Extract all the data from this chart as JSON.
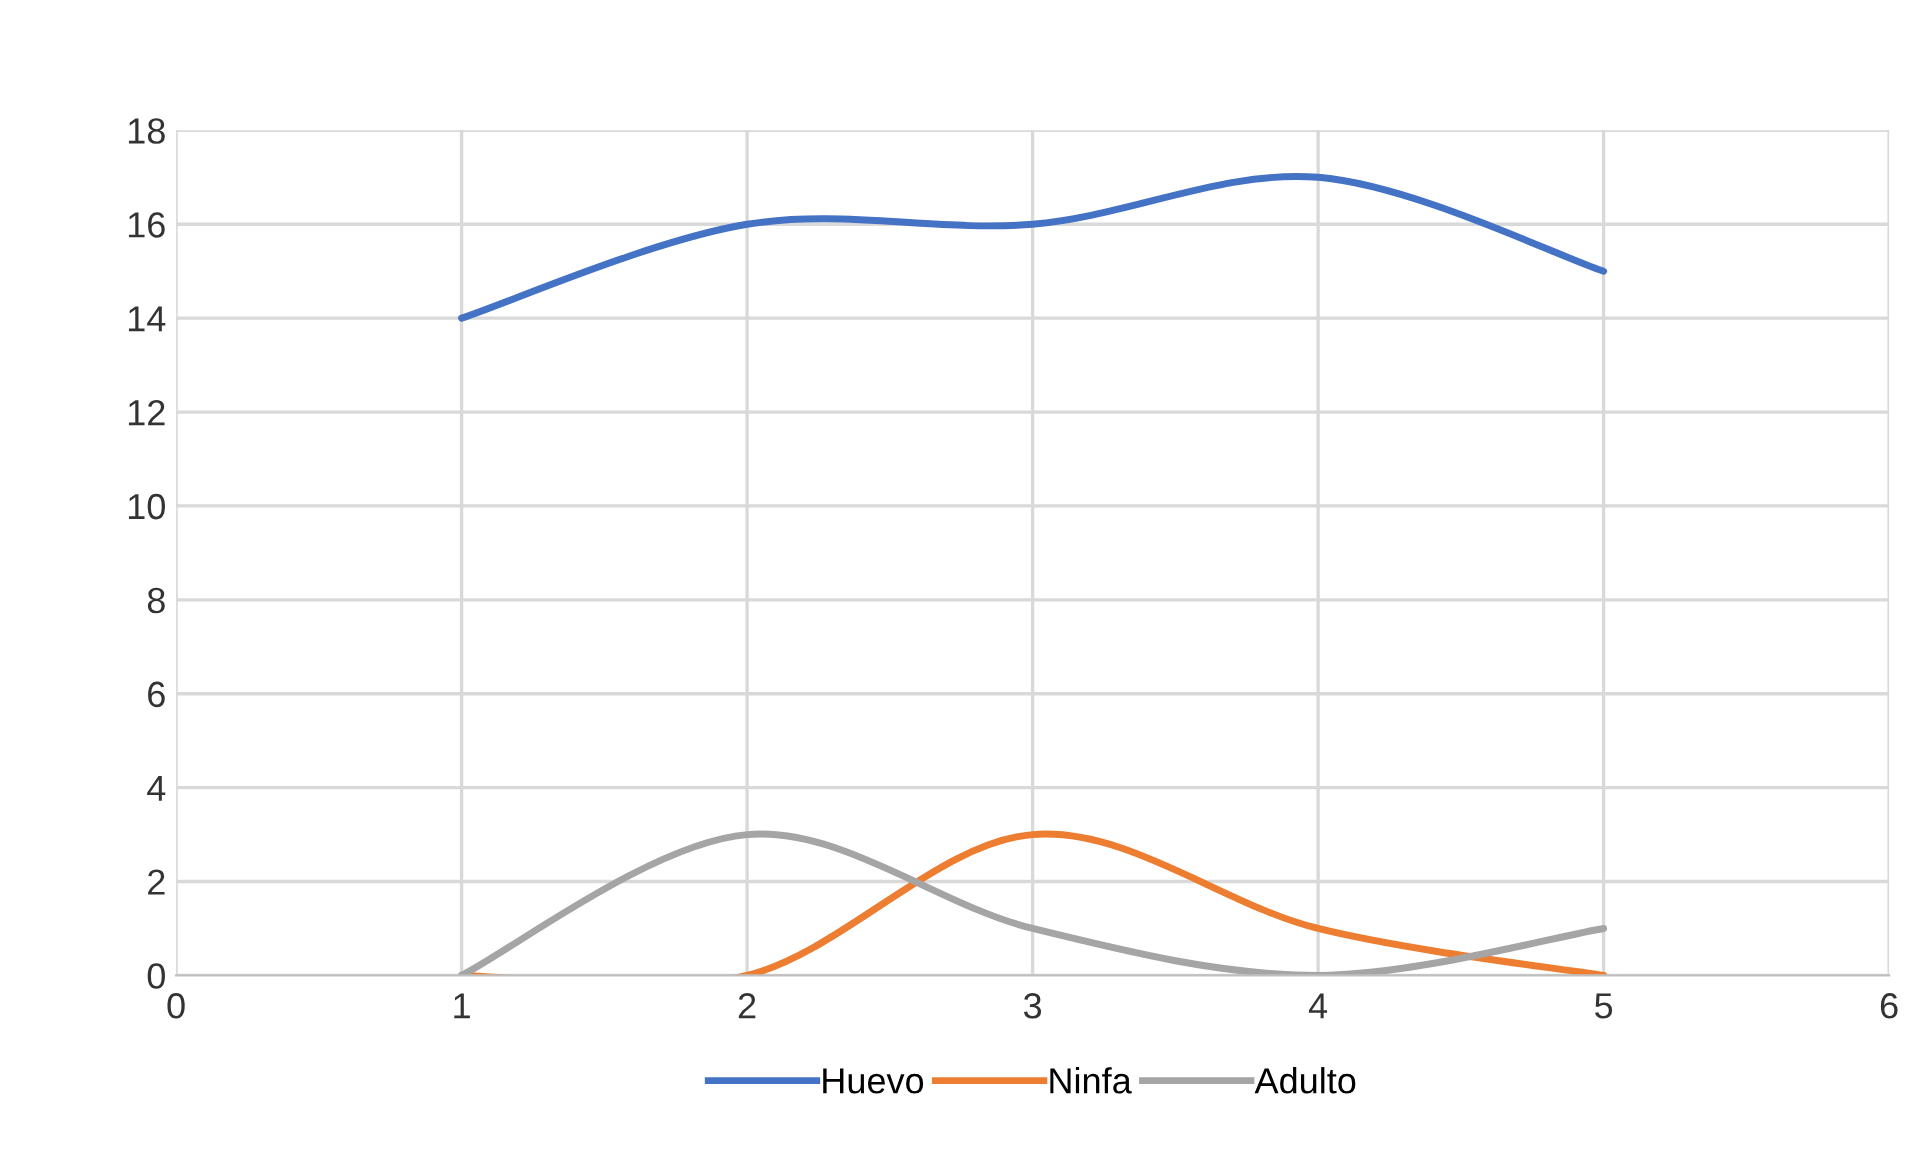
{
  "chart_data": {
    "type": "line",
    "x": [
      1,
      2,
      3,
      4,
      5
    ],
    "series": [
      {
        "name": "Huevo",
        "color": "#4472c4",
        "values": [
          14,
          16,
          16,
          17,
          15
        ]
      },
      {
        "name": "Ninfa",
        "color": "#ed7d31",
        "values": [
          0,
          0,
          3,
          1,
          0
        ]
      },
      {
        "name": "Adulto",
        "color": "#a5a5a5",
        "values": [
          0,
          3,
          1,
          0,
          1
        ]
      }
    ],
    "xlim": [
      0,
      6
    ],
    "xticks": [
      0,
      1,
      2,
      3,
      4,
      5,
      6
    ],
    "ylim": [
      0,
      18
    ],
    "yticks": [
      0,
      2,
      4,
      6,
      8,
      10,
      12,
      14,
      16,
      18
    ],
    "grid": true,
    "legend": "bottom",
    "marker": "none",
    "line_style": "solid"
  }
}
